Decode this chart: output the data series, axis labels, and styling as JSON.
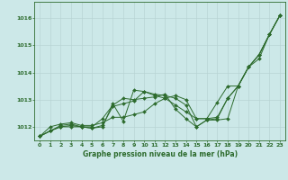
{
  "title": "Graphe pression niveau de la mer (hPa)",
  "background_color": "#cce8e8",
  "plot_bg_color": "#cce8e8",
  "grid_color": "#b8d4d4",
  "line_color": "#2d6b2d",
  "xlim": [
    -0.5,
    23.5
  ],
  "ylim": [
    1011.5,
    1016.6
  ],
  "yticks": [
    1012,
    1013,
    1014,
    1015,
    1016
  ],
  "xticks": [
    0,
    1,
    2,
    3,
    4,
    5,
    6,
    7,
    8,
    9,
    10,
    11,
    12,
    13,
    14,
    15,
    16,
    17,
    18,
    19,
    20,
    21,
    22,
    23
  ],
  "series": [
    [
      1011.65,
      1011.85,
      1012.0,
      1012.0,
      1012.0,
      1011.95,
      1012.0,
      1012.85,
      1012.2,
      1013.35,
      1013.3,
      1013.2,
      1013.15,
      1013.05,
      1012.8,
      1012.0,
      1012.25,
      1012.25,
      1012.3,
      1013.5,
      1014.2,
      1014.65,
      1015.4,
      1016.1
    ],
    [
      1011.65,
      1011.85,
      1012.0,
      1012.05,
      1012.0,
      1011.95,
      1012.05,
      1012.75,
      1012.85,
      1012.95,
      1013.3,
      1013.15,
      1013.05,
      1012.8,
      1012.55,
      1012.3,
      1012.3,
      1012.9,
      1013.5,
      1013.5,
      1014.2,
      1014.5,
      1015.4,
      1016.1
    ],
    [
      1011.65,
      1011.85,
      1012.05,
      1012.1,
      1012.0,
      1012.0,
      1012.3,
      1012.8,
      1013.05,
      1013.0,
      1013.05,
      1013.1,
      1013.2,
      1012.65,
      1012.3,
      1012.0,
      1012.25,
      1012.3,
      1013.05,
      1013.5,
      1014.2,
      1014.65,
      1015.4,
      1016.1
    ],
    [
      1011.65,
      1012.0,
      1012.1,
      1012.15,
      1012.05,
      1012.05,
      1012.15,
      1012.35,
      1012.35,
      1012.45,
      1012.55,
      1012.85,
      1013.05,
      1013.15,
      1013.0,
      1012.3,
      1012.3,
      1012.35,
      1013.05,
      1013.5,
      1014.2,
      1014.65,
      1015.4,
      1016.1
    ]
  ]
}
